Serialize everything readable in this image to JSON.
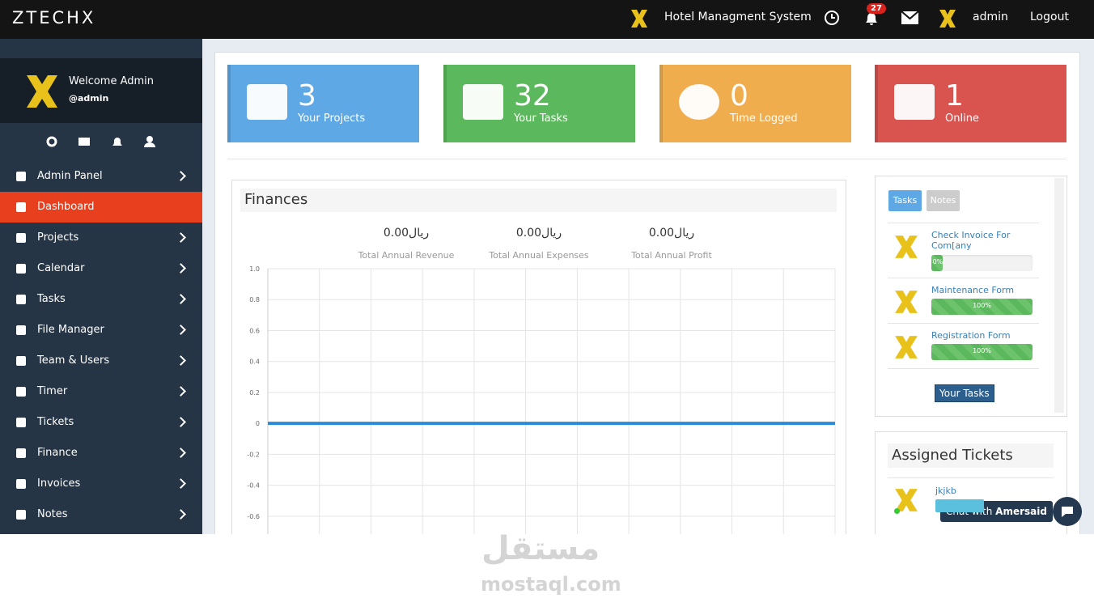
{
  "topbar": {
    "brand": "ZTECHX",
    "system": "Hotel Managment System",
    "notifications": "27",
    "user": "admin",
    "logout": "Logout"
  },
  "sidebar": {
    "welcome": "Welcome Admin",
    "username": "@admin",
    "active": 1,
    "menu": [
      "Admin Panel",
      "Dashboard",
      "Projects",
      "Calendar",
      "Tasks",
      "File Manager",
      "Team & Users",
      "Timer",
      "Tickets",
      "Finance",
      "Invoices",
      "Notes"
    ]
  },
  "stats": [
    {
      "value": "3",
      "label": "Your Projects",
      "color": "#5fa8e6"
    },
    {
      "value": "32",
      "label": "Your Tasks",
      "color": "#5cb85c"
    },
    {
      "value": "0",
      "label": "Time Logged",
      "color": "#f0ad4e"
    },
    {
      "value": "1",
      "label": "Online",
      "color": "#d9534f"
    }
  ],
  "finances": {
    "title": "Finances",
    "totals": [
      {
        "amount": "0.00ريال",
        "label": "Total Annual Revenue"
      },
      {
        "amount": "0.00ريال",
        "label": "Total Annual Expenses"
      },
      {
        "amount": "0.00ريال",
        "label": "Total Annual Profit"
      }
    ],
    "chart": {
      "type": "line",
      "ylim": [
        -0.7,
        1
      ],
      "yticks": [
        {
          "value": 1,
          "label": "1.0"
        },
        0.8,
        0.6,
        0.4,
        0.2,
        0,
        -0.2,
        -0.4,
        -0.6
      ],
      "grid": true,
      "series": [
        {
          "color": "#2d8ad6",
          "values": [
            0,
            0,
            0,
            0,
            0,
            0,
            0,
            0,
            0,
            0,
            0,
            0
          ]
        }
      ]
    }
  },
  "tasks_panel": {
    "tabs": [
      "Tasks",
      "Notes"
    ],
    "items": [
      {
        "title": "Check Invoice For Com[any",
        "progress": {
          "value": 0,
          "label": "0%"
        }
      },
      {
        "title": "Maintenance Form",
        "progress": {
          "value": 100,
          "label": "100%"
        }
      },
      {
        "title": "Registration Form",
        "progress": {
          "value": 100,
          "label": "100%"
        }
      }
    ],
    "button": "Your Tasks"
  },
  "tickets": {
    "title": "Assigned Tickets",
    "items": [
      {
        "title": "jkjkb"
      }
    ]
  },
  "chat": {
    "prefix": "Chat with",
    "name": "Amersaid"
  },
  "watermark": {
    "arabic": "مستقل",
    "latin": "mostaql.com"
  }
}
